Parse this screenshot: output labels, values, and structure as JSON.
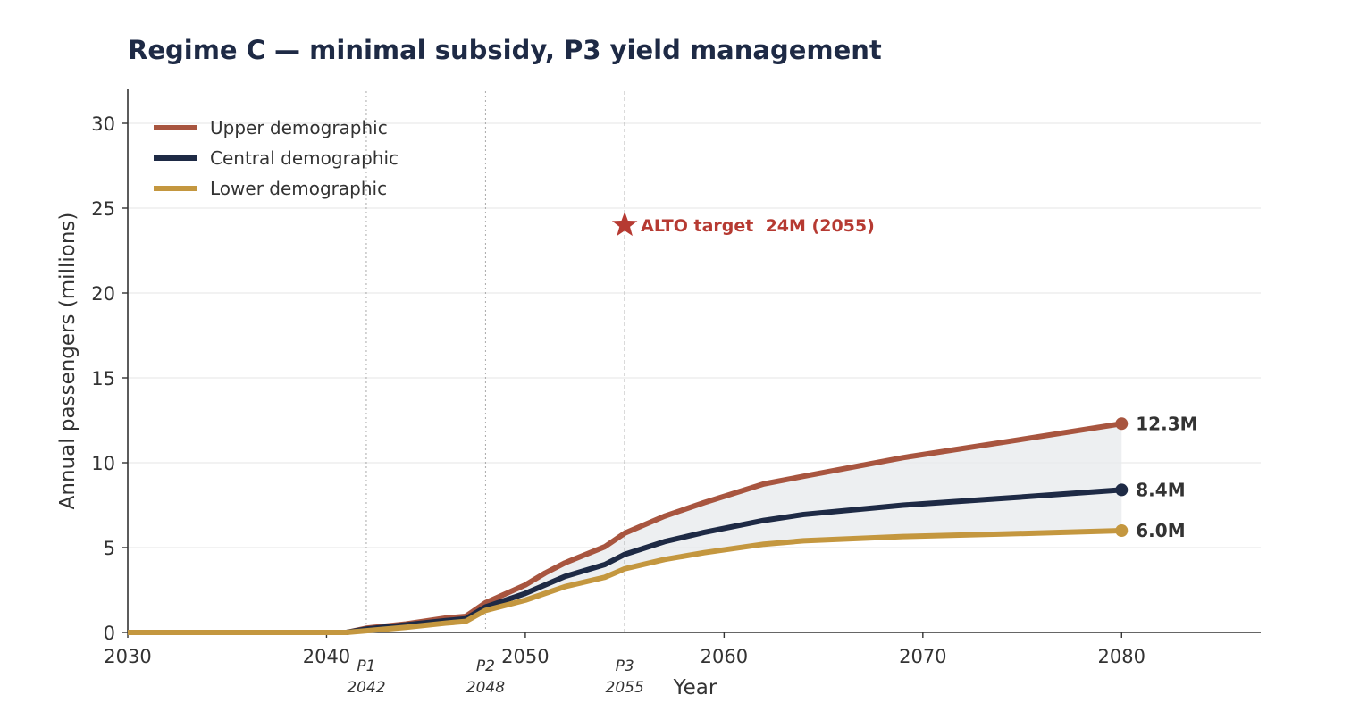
{
  "chart_data": {
    "type": "line",
    "title": "Regime C — minimal subsidy, P3 yield management",
    "xlabel": "Year",
    "ylabel": "Annual passengers (millions)",
    "xlim": [
      2030,
      2087
    ],
    "ylim": [
      0,
      32
    ],
    "xticks": [
      2030,
      2040,
      2050,
      2060,
      2070,
      2080
    ],
    "yticks": [
      0,
      5,
      10,
      15,
      20,
      25,
      30
    ],
    "grid": "horizontal",
    "legend_position": "top-left",
    "shaded_band": "between Upper demographic and Lower demographic",
    "series": [
      {
        "name": "Upper demographic",
        "color": "#a8553f",
        "x": [
          2030,
          2041,
          2042,
          2044,
          2046,
          2047,
          2048,
          2050,
          2051,
          2052,
          2054,
          2055,
          2057,
          2059,
          2062,
          2064,
          2069,
          2074,
          2080
        ],
        "values": [
          0,
          0,
          0.25,
          0.5,
          0.85,
          0.95,
          1.75,
          2.8,
          3.5,
          4.1,
          5.05,
          5.85,
          6.85,
          7.65,
          8.75,
          9.2,
          10.3,
          11.2,
          12.3
        ]
      },
      {
        "name": "Central demographic",
        "color": "#1e2a45",
        "x": [
          2030,
          2041,
          2042,
          2044,
          2046,
          2047,
          2048,
          2050,
          2052,
          2054,
          2055,
          2057,
          2059,
          2062,
          2064,
          2069,
          2074,
          2080
        ],
        "values": [
          0,
          0,
          0.2,
          0.45,
          0.7,
          0.8,
          1.5,
          2.3,
          3.3,
          4.0,
          4.6,
          5.35,
          5.9,
          6.6,
          6.95,
          7.5,
          7.9,
          8.4
        ]
      },
      {
        "name": "Lower demographic",
        "color": "#c4973f",
        "x": [
          2030,
          2041,
          2042,
          2044,
          2046,
          2047,
          2048,
          2050,
          2052,
          2054,
          2055,
          2057,
          2059,
          2062,
          2064,
          2069,
          2074,
          2080
        ],
        "values": [
          0,
          0,
          0.1,
          0.3,
          0.55,
          0.65,
          1.3,
          1.9,
          2.7,
          3.25,
          3.75,
          4.3,
          4.7,
          5.2,
          5.4,
          5.65,
          5.8,
          6.0
        ]
      }
    ],
    "end_labels": [
      "12.3M",
      "8.4M",
      "6.0M"
    ],
    "phases": [
      {
        "label": "P1",
        "year_label": "2042",
        "year": 2042
      },
      {
        "label": "P2",
        "year_label": "2048",
        "year": 2048
      },
      {
        "label": "P3",
        "year_label": "2055",
        "year": 2055
      }
    ],
    "target": {
      "year": 2055,
      "value": 24,
      "label": "ALTO target  24M (2055)",
      "color": "#b63a32",
      "marker": "star-icon"
    },
    "colors": {
      "title": "#1e2a45",
      "grid": "#e6e6e6",
      "band": "#e9ebee"
    }
  }
}
